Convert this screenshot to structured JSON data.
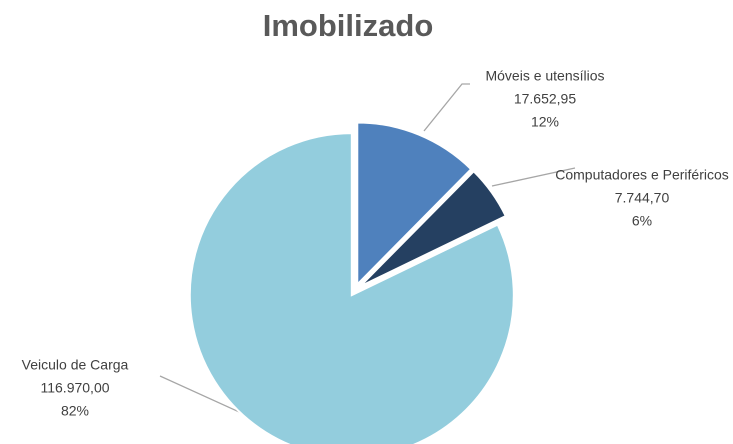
{
  "chart_data": {
    "type": "pie",
    "title": "Imobilizado",
    "categories": [
      "Móveis e utensílios",
      "Computadores e Periféricos",
      "Veiculo de Carga"
    ],
    "values": [
      17652.95,
      7744.7,
      116970.0
    ],
    "value_labels": [
      "17.652,95",
      "7.744,70",
      "116.970,00"
    ],
    "percentages": [
      12,
      6,
      82
    ],
    "percentage_labels": [
      "12%",
      "6%",
      "82%"
    ],
    "colors": [
      "#4f81bd",
      "#254061",
      "#93cddd"
    ]
  }
}
